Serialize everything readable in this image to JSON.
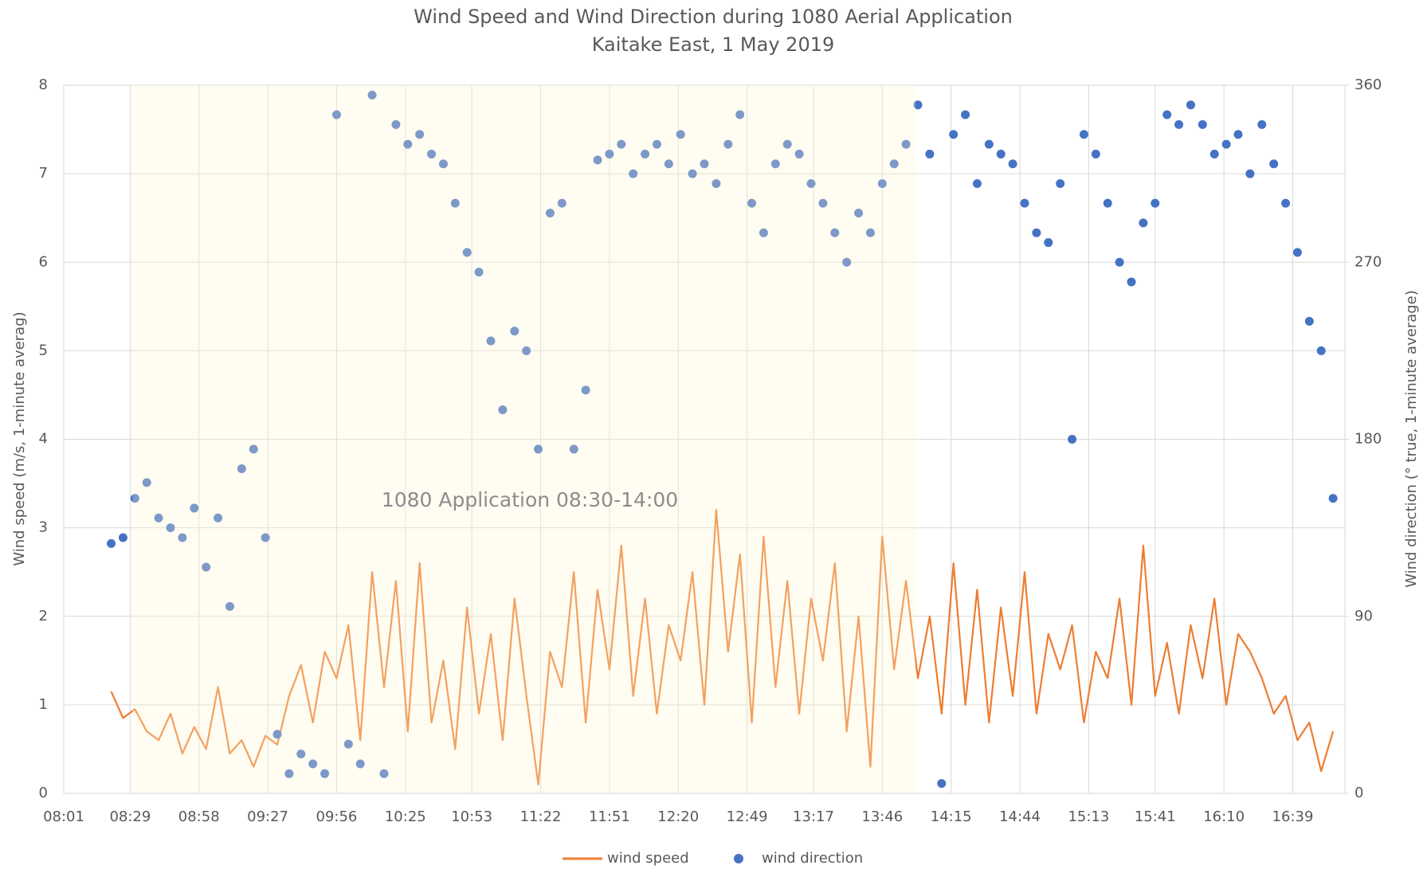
{
  "chart_data": {
    "type": "combo",
    "title": "Wind Speed and Wind Direction during 1080 Aerial Application",
    "subtitle": "Kaitake East, 1 May 2019",
    "y_label": "Wind speed (m/s, 1-minute averag)",
    "y2_label": "Wind direction (° true, 1-minute average)",
    "annotation": "1080 Application 08:30-14:00",
    "shade": [
      "08:30",
      "14:00"
    ],
    "grid": true,
    "legend": "bottom",
    "xlim": [
      "08:01",
      "17:01"
    ],
    "xticks": [
      "08:01",
      "08:29",
      "08:58",
      "09:27",
      "09:56",
      "10:25",
      "10:53",
      "11:22",
      "11:51",
      "12:20",
      "12:49",
      "13:17",
      "13:46",
      "14:15",
      "14:44",
      "15:13",
      "15:41",
      "16:10",
      "16:39"
    ],
    "ylim": [
      0,
      8
    ],
    "yticks": [
      0,
      1,
      2,
      3,
      4,
      5,
      6,
      7,
      8
    ],
    "y2lim": [
      0,
      360
    ],
    "y2ticks": [
      0,
      90,
      180,
      270,
      360
    ],
    "x": [
      "08:21",
      "08:26",
      "08:31",
      "08:36",
      "08:41",
      "08:46",
      "08:51",
      "08:56",
      "09:01",
      "09:06",
      "09:11",
      "09:16",
      "09:21",
      "09:26",
      "09:31",
      "09:36",
      "09:41",
      "09:46",
      "09:51",
      "09:56",
      "10:01",
      "10:06",
      "10:11",
      "10:16",
      "10:21",
      "10:26",
      "10:31",
      "10:36",
      "10:41",
      "10:46",
      "10:51",
      "10:56",
      "11:01",
      "11:06",
      "11:11",
      "11:16",
      "11:21",
      "11:26",
      "11:31",
      "11:36",
      "11:41",
      "11:46",
      "11:51",
      "11:56",
      "12:01",
      "12:06",
      "12:11",
      "12:16",
      "12:21",
      "12:26",
      "12:31",
      "12:36",
      "12:41",
      "12:46",
      "12:51",
      "12:56",
      "13:01",
      "13:06",
      "13:11",
      "13:16",
      "13:21",
      "13:26",
      "13:31",
      "13:36",
      "13:41",
      "13:46",
      "13:51",
      "13:56",
      "14:01",
      "14:06",
      "14:11",
      "14:16",
      "14:21",
      "14:26",
      "14:31",
      "14:36",
      "14:41",
      "14:46",
      "14:51",
      "14:56",
      "15:01",
      "15:06",
      "15:11",
      "15:16",
      "15:21",
      "15:26",
      "15:31",
      "15:36",
      "15:41",
      "15:46",
      "15:51",
      "15:56",
      "16:01",
      "16:06",
      "16:11",
      "16:16",
      "16:21",
      "16:26",
      "16:31",
      "16:36",
      "16:41",
      "16:46",
      "16:51",
      "16:56"
    ],
    "series": [
      {
        "name": "wind speed",
        "type": "line",
        "color": "#ed7d31",
        "values": [
          1.15,
          0.85,
          0.95,
          0.7,
          0.6,
          0.9,
          0.45,
          0.75,
          0.5,
          1.2,
          0.45,
          0.6,
          0.3,
          0.65,
          0.55,
          1.1,
          1.45,
          0.8,
          1.6,
          1.3,
          1.9,
          0.6,
          2.5,
          1.2,
          2.4,
          0.7,
          2.6,
          0.8,
          1.5,
          0.5,
          2.1,
          0.9,
          1.8,
          0.6,
          2.2,
          1.1,
          0.1,
          1.6,
          1.2,
          2.5,
          0.8,
          2.3,
          1.4,
          2.8,
          1.1,
          2.2,
          0.9,
          1.9,
          1.5,
          2.5,
          1.0,
          3.2,
          1.6,
          2.7,
          0.8,
          2.9,
          1.2,
          2.4,
          0.9,
          2.2,
          1.5,
          2.6,
          0.7,
          2.0,
          0.3,
          2.9,
          1.4,
          2.4,
          1.3,
          2.0,
          0.9,
          2.6,
          1.0,
          2.3,
          0.8,
          2.1,
          1.1,
          2.5,
          0.9,
          1.8,
          1.4,
          1.9,
          0.8,
          1.6,
          1.3,
          2.2,
          1.0,
          2.8,
          1.1,
          1.7,
          0.9,
          1.9,
          1.3,
          2.2,
          1.0,
          1.8,
          1.6,
          1.3,
          0.9,
          1.1,
          0.6,
          0.8,
          0.25,
          0.7
        ]
      },
      {
        "name": "wind direction",
        "type": "scatter",
        "axis": "y2",
        "color": "#4472c4",
        "values": [
          127,
          130,
          150,
          158,
          140,
          135,
          130,
          145,
          115,
          140,
          95,
          165,
          175,
          130,
          30,
          10,
          20,
          15,
          10,
          345,
          25,
          15,
          355,
          10,
          340,
          330,
          335,
          325,
          320,
          300,
          275,
          265,
          230,
          195,
          235,
          225,
          175,
          295,
          300,
          175,
          205,
          322,
          325,
          330,
          315,
          325,
          330,
          320,
          335,
          315,
          320,
          310,
          330,
          345,
          300,
          285,
          320,
          330,
          325,
          310,
          300,
          285,
          270,
          295,
          285,
          310,
          320,
          330,
          350,
          325,
          5,
          335,
          345,
          310,
          330,
          325,
          320,
          300,
          285,
          280,
          310,
          180,
          335,
          325,
          300,
          270,
          260,
          290,
          300,
          345,
          340,
          350,
          340,
          325,
          330,
          335,
          315,
          340,
          320,
          300,
          275,
          240,
          225,
          150
        ]
      }
    ]
  }
}
